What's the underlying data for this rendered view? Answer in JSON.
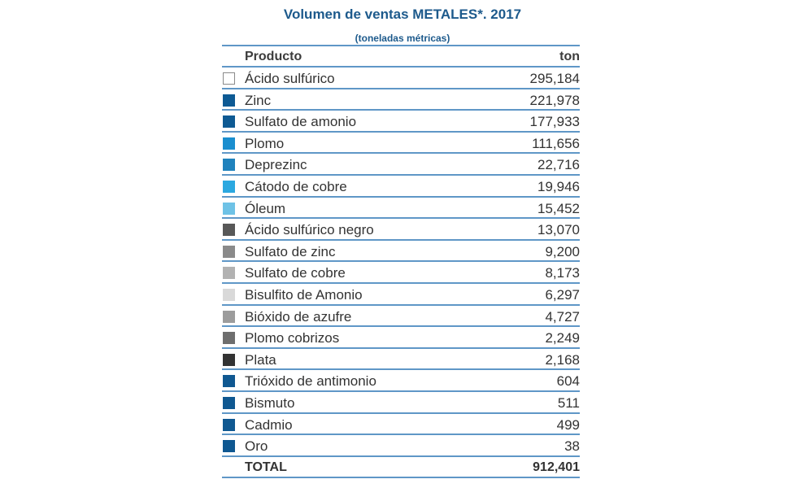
{
  "chart_data": {
    "type": "table",
    "title": "Volumen de ventas METALES*. 2017",
    "subtitle": "(toneladas métricas)",
    "columns": [
      "Producto",
      "ton"
    ],
    "rows": [
      {
        "label": "Ácido sulfúrico",
        "value": "295,184",
        "color": "#ffffff"
      },
      {
        "label": "Zinc",
        "value": "221,978",
        "color": "#0d5a94"
      },
      {
        "label": "Sulfato de amonio",
        "value": "177,933",
        "color": "#0e5a93"
      },
      {
        "label": "Plomo",
        "value": "111,656",
        "color": "#1a8ecf"
      },
      {
        "label": "Deprezinc",
        "value": "22,716",
        "color": "#1f82bd"
      },
      {
        "label": "Cátodo de cobre",
        "value": "19,946",
        "color": "#2ba8e0"
      },
      {
        "label": "Óleum",
        "value": "15,452",
        "color": "#6ec2e6"
      },
      {
        "label": "Ácido sulfúrico negro",
        "value": "13,070",
        "color": "#585858"
      },
      {
        "label": "Sulfato de zinc",
        "value": "9,200",
        "color": "#8a8a8a"
      },
      {
        "label": "Sulfato de cobre",
        "value": "8,173",
        "color": "#b2b2b2"
      },
      {
        "label": "Bisulfito de Amonio",
        "value": "6,297",
        "color": "#d9d9d9"
      },
      {
        "label": "Bióxido de azufre",
        "value": "4,727",
        "color": "#9c9c9c"
      },
      {
        "label": "Plomo cobrizos",
        "value": "2,249",
        "color": "#6e6e6e"
      },
      {
        "label": "Plata",
        "value": "2,168",
        "color": "#333333"
      },
      {
        "label": "Trióxido de antimonio",
        "value": "604",
        "color": "#0f5891"
      },
      {
        "label": "Bismuto",
        "value": "511",
        "color": "#0f5891"
      },
      {
        "label": "Cadmio",
        "value": "499",
        "color": "#0f5891"
      },
      {
        "label": "Oro",
        "value": "38",
        "color": "#0f5891"
      }
    ],
    "total": {
      "label": "TOTAL",
      "value": "912,401"
    }
  }
}
